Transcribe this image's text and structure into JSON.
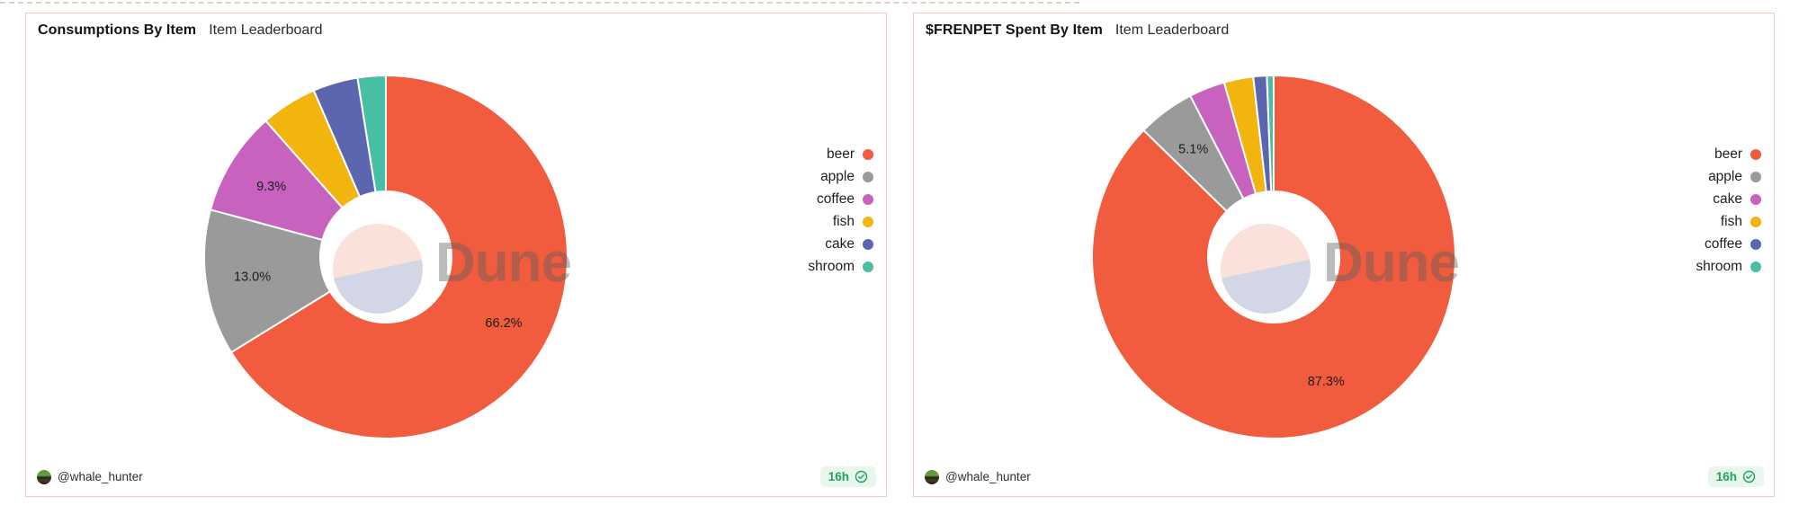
{
  "page": {
    "watermark": "Dune"
  },
  "cards": [
    {
      "title": "Consumptions By Item",
      "subtitle": "Item Leaderboard",
      "author": "@whale_hunter",
      "badge": "16h"
    },
    {
      "title": "$FRENPET Spent By Item",
      "subtitle": "Item Leaderboard",
      "author": "@whale_hunter",
      "badge": "16h"
    }
  ],
  "chart_data": [
    {
      "type": "pie",
      "donut": true,
      "title": "Consumptions By Item",
      "subtitle": "Item Leaderboard",
      "legend_position": "right",
      "slices": [
        {
          "category": "beer",
          "value": 66.2,
          "label": "66.2%",
          "color": "#f15c3e"
        },
        {
          "category": "apple",
          "value": 13.0,
          "label": "13.0%",
          "color": "#9a9a9a"
        },
        {
          "category": "coffee",
          "value": 9.3,
          "label": "9.3%",
          "color": "#c763be"
        },
        {
          "category": "fish",
          "value": 5.0,
          "label": "",
          "color": "#f2b50d"
        },
        {
          "category": "cake",
          "value": 4.0,
          "label": "",
          "color": "#5c66ae"
        },
        {
          "category": "shroom",
          "value": 2.5,
          "label": "",
          "color": "#48bea3"
        }
      ]
    },
    {
      "type": "pie",
      "donut": true,
      "title": "$FRENPET Spent By Item",
      "subtitle": "Item Leaderboard",
      "legend_position": "right",
      "slices": [
        {
          "category": "beer",
          "value": 87.3,
          "label": "87.3%",
          "color": "#f15c3e"
        },
        {
          "category": "apple",
          "value": 5.1,
          "label": "5.1%",
          "color": "#9a9a9a"
        },
        {
          "category": "cake",
          "value": 3.2,
          "label": "",
          "color": "#c763be"
        },
        {
          "category": "fish",
          "value": 2.6,
          "label": "",
          "color": "#f2b50d"
        },
        {
          "category": "coffee",
          "value": 1.2,
          "label": "",
          "color": "#5c66ae"
        },
        {
          "category": "shroom",
          "value": 0.6,
          "label": "",
          "color": "#48bea3"
        }
      ]
    }
  ],
  "colors": {
    "card_border": "#f3c7ba",
    "badge_green": "#1ca35c",
    "badge_bg": "#e9f6ee",
    "watermark_gray": "#b7b7b7",
    "logo_pink": "#fae1da",
    "logo_lavender": "#d3d6e6"
  }
}
